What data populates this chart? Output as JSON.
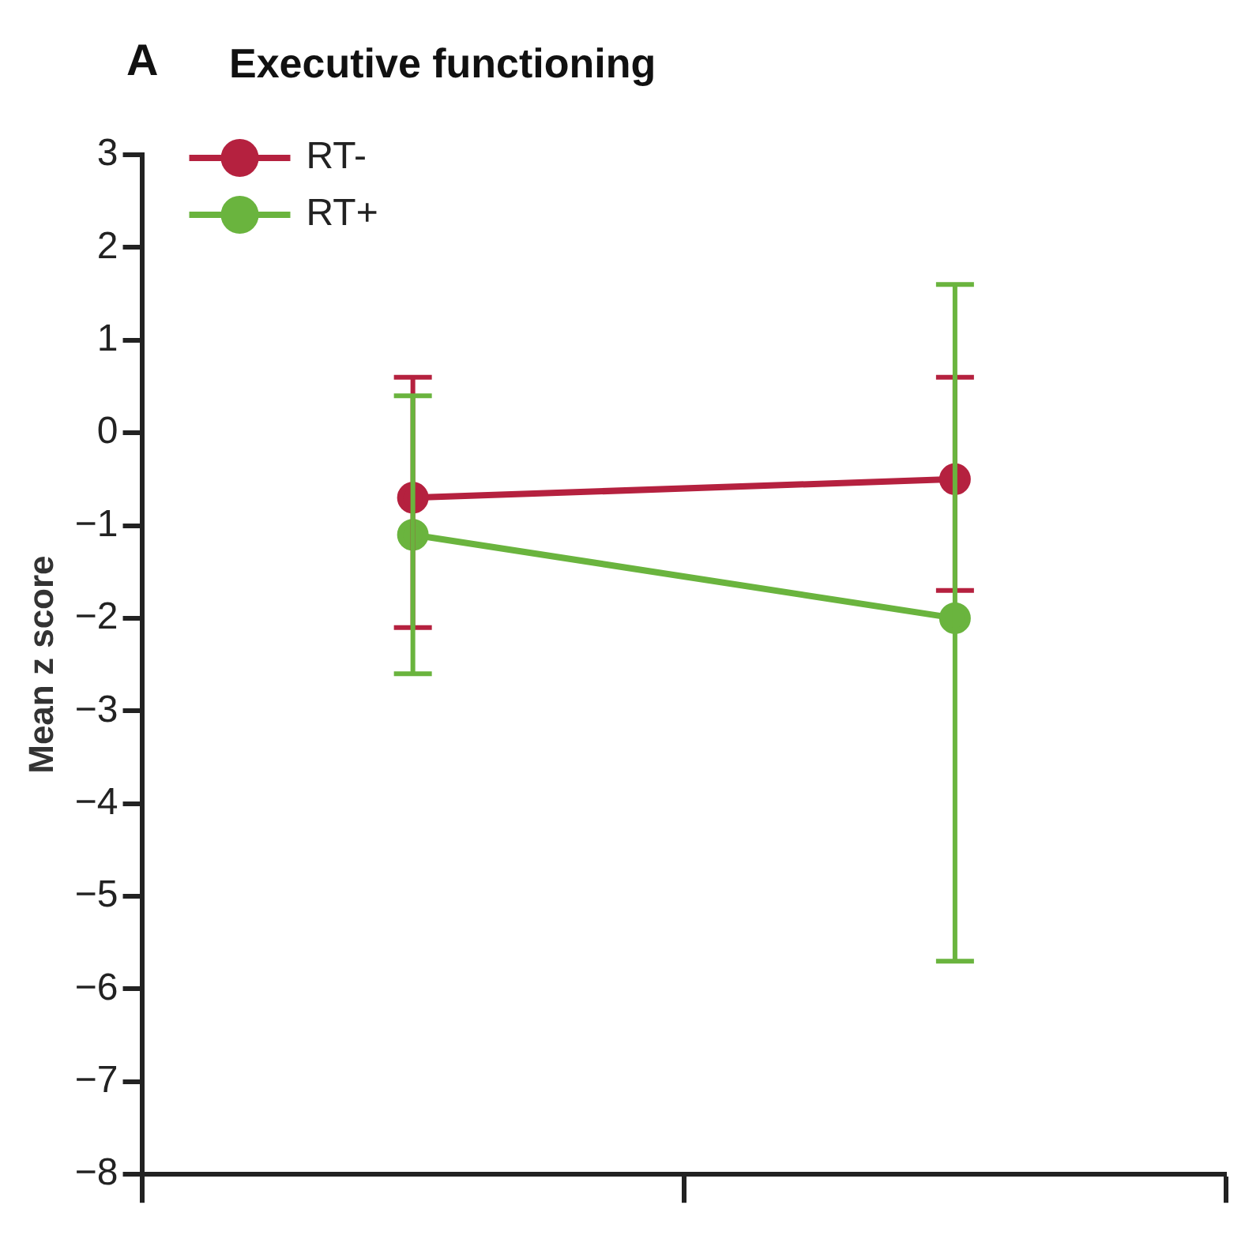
{
  "chart_data": {
    "type": "line",
    "title": "Executive functioning",
    "ylabel": "Mean z score",
    "annotations": [
      "A"
    ],
    "categories": [
      null,
      null
    ],
    "series": [
      {
        "name": "RT-",
        "color": "#b5213f",
        "values": [
          -0.7,
          -0.5
        ],
        "errors": [
          [
            -2.1,
            0.6
          ],
          [
            -1.7,
            0.6
          ]
        ]
      },
      {
        "name": "RT+",
        "color": "#6ab43e",
        "values": [
          -1.1,
          -2.0
        ],
        "errors": [
          [
            -2.6,
            0.4
          ],
          [
            -5.7,
            1.6
          ]
        ]
      }
    ],
    "ylim": [
      -8,
      3
    ],
    "yticks": [
      -8,
      -7,
      -6,
      -5,
      -4,
      -3,
      -2,
      -1,
      0,
      1,
      2,
      3
    ],
    "grid": false,
    "legend": "top left",
    "marker": "circle",
    "line_style": "solid"
  }
}
